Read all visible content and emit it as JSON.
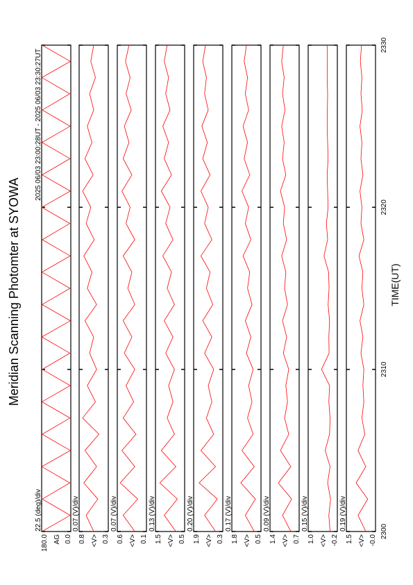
{
  "chart_data": {
    "type": "line",
    "title": "Meridian Scanning Photomter at SYOWA",
    "subtitle": "2025 06/03 23:00:28UT - 2025 06/03 23:30:27UT",
    "x_label": "TIME(UT)",
    "x": [
      2300,
      2301,
      2302,
      2303,
      2304,
      2305,
      2306,
      2307,
      2308,
      2309,
      2310,
      2311,
      2312,
      2313,
      2314,
      2315,
      2316,
      2317,
      2318,
      2319,
      2320,
      2321,
      2322,
      2323,
      2324,
      2325,
      2326,
      2327,
      2328,
      2329,
      2330
    ],
    "xlim": [
      2300,
      2330
    ],
    "xticks": [
      2300,
      2310,
      2320,
      2330
    ],
    "color": "#ff0000",
    "panels": [
      {
        "scale": "22.5 (deg)/div",
        "ylabel": "AG",
        "ylim": [
          0,
          180
        ],
        "yticks": [
          {
            "value": 180,
            "label": "180.0"
          },
          {
            "value": 0,
            "label": "0.0"
          }
        ],
        "values": [
          178,
          4,
          176,
          6,
          179,
          3,
          177,
          5,
          178,
          4,
          176,
          6,
          179,
          3,
          177,
          5,
          178,
          4,
          176,
          6,
          179,
          3,
          177,
          5,
          178,
          4,
          176,
          6,
          179,
          3,
          177
        ]
      },
      {
        "scale": "0.07 (V)/div",
        "ylabel": "<V>",
        "ylim": [
          0.3,
          0.8
        ],
        "yticks": [
          0.8,
          0.3
        ],
        "values": [
          0.55,
          0.68,
          0.48,
          0.72,
          0.5,
          0.7,
          0.46,
          0.74,
          0.52,
          0.66,
          0.5,
          0.62,
          0.55,
          0.7,
          0.5,
          0.66,
          0.58,
          0.72,
          0.54,
          0.68,
          0.6,
          0.74,
          0.56,
          0.7,
          0.58,
          0.66,
          0.55,
          0.62,
          0.52,
          0.6,
          0.55
        ]
      },
      {
        "scale": "0.07 (V)/div",
        "ylabel": "<V>",
        "ylim": [
          0.1,
          0.6
        ],
        "yticks": [
          0.6,
          0.1
        ],
        "values": [
          0.3,
          0.5,
          0.25,
          0.55,
          0.3,
          0.52,
          0.28,
          0.5,
          0.32,
          0.45,
          0.3,
          0.48,
          0.35,
          0.5,
          0.3,
          0.42,
          0.35,
          0.5,
          0.3,
          0.45,
          0.38,
          0.52,
          0.35,
          0.5,
          0.4,
          0.48,
          0.36,
          0.45,
          0.38,
          0.46,
          0.4
        ]
      },
      {
        "scale": "0.13 (V)/div",
        "ylabel": "<V>",
        "ylim": [
          0.5,
          1.5
        ],
        "yticks": [
          1.5,
          0.5
        ],
        "values": [
          0.8,
          1.2,
          0.75,
          1.35,
          0.8,
          1.3,
          0.85,
          1.1,
          0.9,
          1.05,
          0.85,
          1.15,
          0.9,
          1.2,
          0.85,
          1.1,
          0.95,
          1.25,
          0.9,
          1.15,
          1.0,
          1.3,
          0.95,
          1.2,
          1.05,
          1.25,
          1.0,
          1.15,
          1.05,
          1.2,
          1.1
        ]
      },
      {
        "scale": "0.20 (V)/div",
        "ylabel": "<V>",
        "ylim": [
          0.3,
          1.9
        ],
        "yticks": [
          1.9,
          0.3
        ],
        "values": [
          0.7,
          1.3,
          0.6,
          1.6,
          0.7,
          1.5,
          0.8,
          1.2,
          0.9,
          1.1,
          0.8,
          1.3,
          0.9,
          1.4,
          0.85,
          1.2,
          1.0,
          1.5,
          0.9,
          1.3,
          1.1,
          1.5,
          1.0,
          1.4,
          1.15,
          1.45,
          1.1,
          1.3,
          1.2,
          1.4,
          1.25
        ]
      },
      {
        "scale": "0.17 (V)/div",
        "ylabel": "<V>",
        "ylim": [
          0.5,
          1.8
        ],
        "yticks": [
          1.8,
          0.5
        ],
        "values": [
          0.8,
          1.2,
          0.75,
          1.4,
          0.8,
          1.35,
          0.85,
          1.1,
          0.9,
          1.05,
          0.85,
          1.15,
          0.95,
          1.2,
          0.9,
          1.1,
          1.0,
          1.3,
          0.95,
          1.2,
          1.05,
          1.35,
          1.0,
          1.25,
          1.1,
          1.3,
          1.05,
          1.2,
          1.1,
          1.25,
          1.15
        ]
      },
      {
        "scale": "0.09 (V)/div",
        "ylabel": "<V>",
        "ylim": [
          0.7,
          1.4
        ],
        "yticks": [
          1.4,
          0.7
        ],
        "values": [
          0.9,
          1.1,
          0.88,
          1.2,
          0.9,
          1.15,
          0.95,
          1.05,
          0.98,
          1.02,
          0.95,
          1.08,
          1.0,
          1.1,
          0.98,
          1.05,
          1.02,
          1.12,
          1.0,
          1.08,
          1.05,
          1.15,
          1.02,
          1.1,
          1.06,
          1.12,
          1.04,
          1.1,
          1.06,
          1.12,
          1.08
        ]
      },
      {
        "scale": "0.15 (V)/div",
        "ylabel": "<V>",
        "ylim": [
          -0.2,
          1.0
        ],
        "yticks": [
          {
            "value": 1.0,
            "label": "1.0"
          },
          -0.2
        ],
        "values": [
          0.1,
          0.15,
          0.08,
          0.2,
          0.1,
          0.3,
          0.12,
          0.1,
          0.15,
          0.12,
          0.45,
          0.14,
          0.15,
          0.12,
          0.18,
          0.14,
          0.16,
          0.35,
          0.2,
          0.25,
          0.18,
          0.2,
          0.22,
          0.18,
          0.2,
          0.22,
          0.21,
          0.2,
          0.22,
          0.21,
          0.22
        ]
      },
      {
        "scale": "0.19 (V)/div",
        "ylabel": "<V>",
        "ylim": [
          0,
          1.5
        ],
        "yticks": [
          1.5,
          {
            "value": 0,
            "label": "-0.0"
          }
        ],
        "values": [
          0.5,
          0.9,
          0.4,
          1.0,
          0.5,
          0.9,
          0.55,
          0.7,
          0.6,
          0.65,
          0.6,
          0.75,
          0.65,
          0.8,
          0.6,
          0.7,
          0.65,
          0.85,
          0.6,
          0.75,
          0.7,
          0.8,
          0.65,
          0.75,
          0.7,
          0.8,
          0.68,
          0.75,
          0.7,
          0.78,
          0.72
        ]
      }
    ]
  }
}
